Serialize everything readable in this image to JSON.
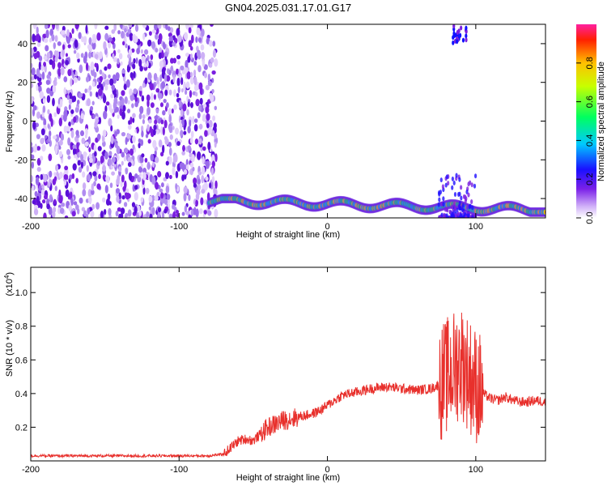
{
  "page": {
    "title": "GN04.2025.031.17.01.G17"
  },
  "colors": {
    "series": "#e8302c",
    "noise_purple": "#7a1fe0",
    "background": "#ffffff"
  },
  "chart_data": [
    {
      "type": "heatmap",
      "name": "spectrogram",
      "xlabel": "Height of straight line (km)",
      "ylabel": "Frequency (Hz)",
      "xlim": [
        -200,
        147
      ],
      "ylim": [
        -50,
        50
      ],
      "x_ticks": [
        "-200",
        "-100",
        "0",
        "100"
      ],
      "y_ticks": [
        "-40",
        "-20",
        "0",
        "20",
        "40"
      ],
      "colormap": "rainbow (magenta-blue-cyan-green-yellow-red)",
      "features": [
        {
          "description": "broadband noise",
          "x_range": [
            -200,
            -75
          ],
          "y_range": [
            -50,
            50
          ]
        },
        {
          "description": "strong narrow signal track",
          "x_range": [
            -80,
            147
          ],
          "y_approx": [
            -46,
            -40
          ]
        },
        {
          "description": "burst near peak",
          "x_range": [
            75,
            100
          ],
          "y_range": [
            -50,
            50
          ]
        }
      ],
      "colorbar": {
        "label": "Normalized spectral amplitude",
        "range": [
          0,
          1
        ],
        "ticks": [
          "0.0",
          "0.2",
          "0.4",
          "0.6",
          "0.8"
        ]
      }
    },
    {
      "type": "line",
      "name": "snr",
      "xlabel": "Height of straight line (km)",
      "ylabel": "SNR (10 * v/v)",
      "y_scale_label": "(x10",
      "y_scale_exp": "4",
      "y_scale_close": ")",
      "xlim": [
        -200,
        147
      ],
      "ylim": [
        0,
        1.15
      ],
      "x_ticks": [
        "-200",
        "-100",
        "0",
        "100"
      ],
      "y_ticks": [
        "0.2",
        "0.4",
        "0.6",
        "0.8",
        "1.0"
      ],
      "series": [
        {
          "color": "#e8302c",
          "x": [
            -200,
            -150,
            -100,
            -80,
            -70,
            -65,
            -60,
            -55,
            -50,
            -45,
            -40,
            -35,
            -30,
            -25,
            -20,
            -15,
            -10,
            -5,
            0,
            5,
            10,
            15,
            20,
            30,
            40,
            50,
            60,
            70,
            75,
            80,
            85,
            90,
            95,
            100,
            105,
            110,
            115,
            120,
            125,
            130,
            135,
            140,
            147
          ],
          "y": [
            0.03,
            0.03,
            0.03,
            0.03,
            0.04,
            0.08,
            0.12,
            0.13,
            0.12,
            0.16,
            0.2,
            0.22,
            0.24,
            0.25,
            0.26,
            0.27,
            0.28,
            0.3,
            0.33,
            0.36,
            0.39,
            0.4,
            0.41,
            0.43,
            0.44,
            0.43,
            0.42,
            0.43,
            0.45,
            0.5,
            0.55,
            0.6,
            0.52,
            0.45,
            0.4,
            0.37,
            0.36,
            0.38,
            0.36,
            0.35,
            0.35,
            0.36,
            0.35
          ]
        }
      ]
    }
  ]
}
